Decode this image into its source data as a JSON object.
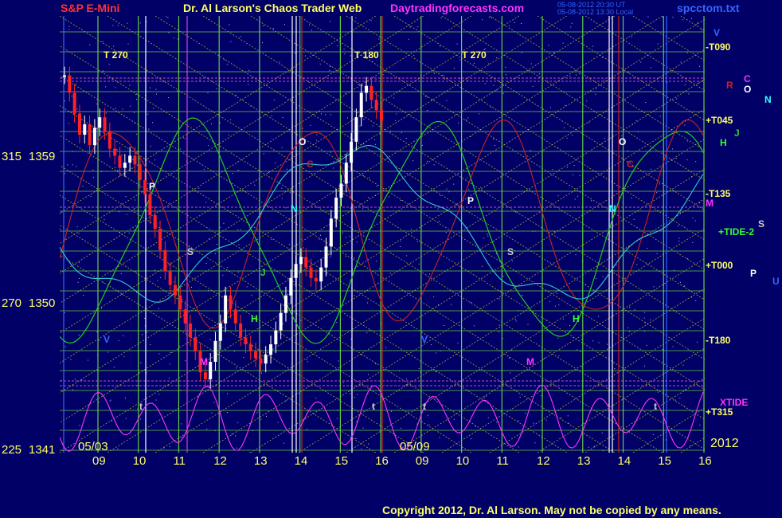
{
  "header": {
    "symbol": "S&P E-Mini",
    "author": "Dr. Al Larson's Chaos Trader Web",
    "site": "Daytradingforecasts.com",
    "stamp1": "05-08-2012 20:30 UT",
    "stamp2": "05-08-2012 13:30 Local",
    "file": "spcctom.txt",
    "year": "2012",
    "copyright": "Copyright 2012, Dr. Al Larson. May not be copied by any means."
  },
  "colors": {
    "background": "#000066",
    "grid_green": "#66cc44",
    "grid_yellow": "#cccc33",
    "price_up": "#ffffff",
    "price_down": "#ff2222",
    "accent_magenta": "#ff33ff"
  },
  "left_axis": [
    {
      "angle": "315",
      "price": "1359"
    },
    {
      "angle": "270",
      "price": "1350"
    },
    {
      "angle": "225",
      "price": "1341"
    }
  ],
  "date_marks": [
    "05/03",
    "05/09"
  ],
  "right_labels": [
    {
      "text": "V",
      "color": "#3366ff"
    },
    {
      "text": "-T090",
      "color": "#ffff66"
    },
    {
      "text": "R",
      "color": "#cc2222"
    },
    {
      "text": "C",
      "color": "#ff33ff"
    },
    {
      "text": "O",
      "color": "#ffffff"
    },
    {
      "text": "N",
      "color": "#33ffff"
    },
    {
      "text": "+T045",
      "color": "#ffff66"
    },
    {
      "text": "H",
      "color": "#33ff33"
    },
    {
      "text": "J",
      "color": "#33cc33"
    },
    {
      "text": "-T135",
      "color": "#ffff66"
    },
    {
      "text": "M",
      "color": "#ff33ff"
    },
    {
      "text": "S",
      "color": "#cccccc"
    },
    {
      "text": "+TIDE-2",
      "color": "#33ff33"
    },
    {
      "text": "+T000",
      "color": "#ffff66"
    },
    {
      "text": "P",
      "color": "#ffffff"
    },
    {
      "text": "U",
      "color": "#3366ff"
    },
    {
      "text": "-T180",
      "color": "#ffff66"
    },
    {
      "text": "XTIDE",
      "color": "#ff33ff"
    },
    {
      "text": "+T315",
      "color": "#ffff66"
    }
  ],
  "top_labels": [
    "T  270",
    "T  180",
    "T  270"
  ],
  "chart_data": {
    "type": "candlestick",
    "title": "S&P E-Mini",
    "x_ticks": [
      "09",
      "10",
      "11",
      "12",
      "13",
      "14",
      "15",
      "16",
      "09",
      "10",
      "11",
      "12",
      "13",
      "14",
      "15",
      "16"
    ],
    "ylabel": "",
    "ylim": [
      1340,
      1365
    ],
    "planet_marks": [
      "V",
      "P",
      "S",
      "M",
      "H",
      "J",
      "O",
      "N",
      "C",
      "R",
      "t"
    ],
    "price_series": [
      1361.6,
      1360.6,
      1359.4,
      1358.2,
      1358.8,
      1357.6,
      1358.6,
      1359.2,
      1358.4,
      1357.4,
      1357.0,
      1356.3,
      1356.6,
      1357.0,
      1356.5,
      1355.6,
      1354.8,
      1353.6,
      1352.8,
      1351.6,
      1350.4,
      1349.6,
      1349.0,
      1348.2,
      1347.4,
      1346.6,
      1345.8,
      1344.6,
      1344.2,
      1345.2,
      1346.4,
      1347.4,
      1349.0,
      1348.2,
      1347.4,
      1346.6,
      1346.2,
      1345.8,
      1345.4,
      1345.1,
      1345.6,
      1346.2,
      1347.0,
      1348.0,
      1349.0,
      1350.0,
      1350.8,
      1351.2,
      1350.6,
      1350.0,
      1349.8,
      1350.6,
      1351.8,
      1353.4,
      1354.6,
      1355.4,
      1356.6,
      1357.8,
      1359.2,
      1360.6,
      1361.0,
      1360.2,
      1359.6,
      1359.0
    ]
  }
}
